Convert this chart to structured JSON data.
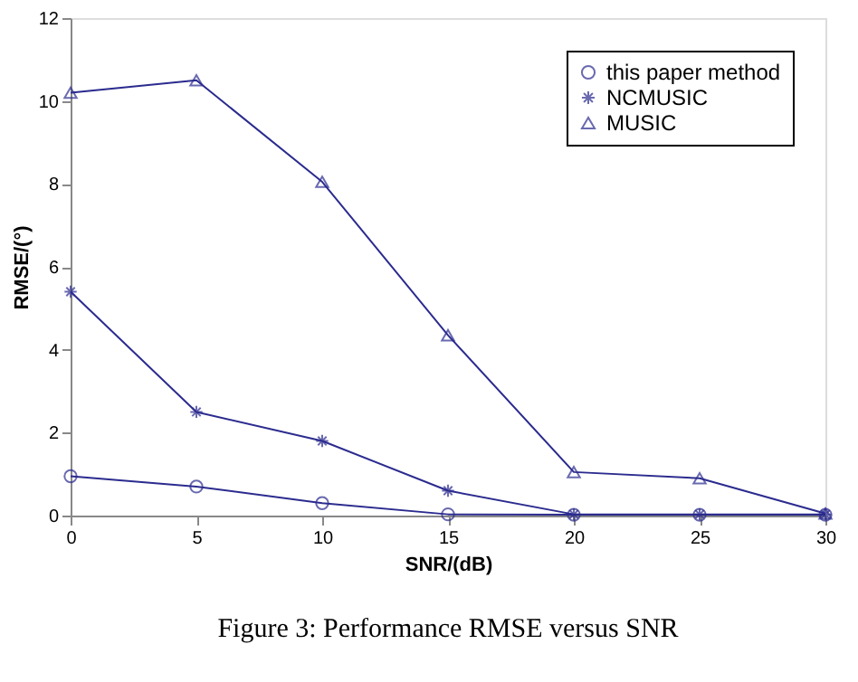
{
  "chart_data": {
    "type": "line",
    "xlabel": "SNR/(dB)",
    "ylabel": "RMSE/(°)",
    "x": [
      0,
      5,
      10,
      15,
      20,
      25,
      30
    ],
    "series": [
      {
        "name": "this paper method",
        "color": "#2b2b8f",
        "marker": "circle",
        "values": [
          0.95,
          0.7,
          0.3,
          0.03,
          0.02,
          0.02,
          0.02
        ]
      },
      {
        "name": "NCMUSIC",
        "color": "#2b2b8f",
        "marker": "cross",
        "values": [
          5.4,
          2.5,
          1.8,
          0.6,
          0.03,
          0.03,
          0.03
        ]
      },
      {
        "name": "MUSIC",
        "color": "#2b2b8f",
        "marker": "triangle",
        "values": [
          10.2,
          10.5,
          8.05,
          4.35,
          1.05,
          0.9,
          0.05
        ]
      }
    ],
    "xlim": [
      0,
      30
    ],
    "xticks": [
      0,
      5,
      10,
      15,
      20,
      25,
      30
    ],
    "ylim": [
      0,
      12
    ],
    "yticks": [
      0,
      2,
      4,
      6,
      8,
      10,
      12
    ],
    "grid": false,
    "legend": "top right",
    "line_style": "solid",
    "annotations": [
      "Figure 3:   Performance RMSE versus SNR"
    ]
  }
}
